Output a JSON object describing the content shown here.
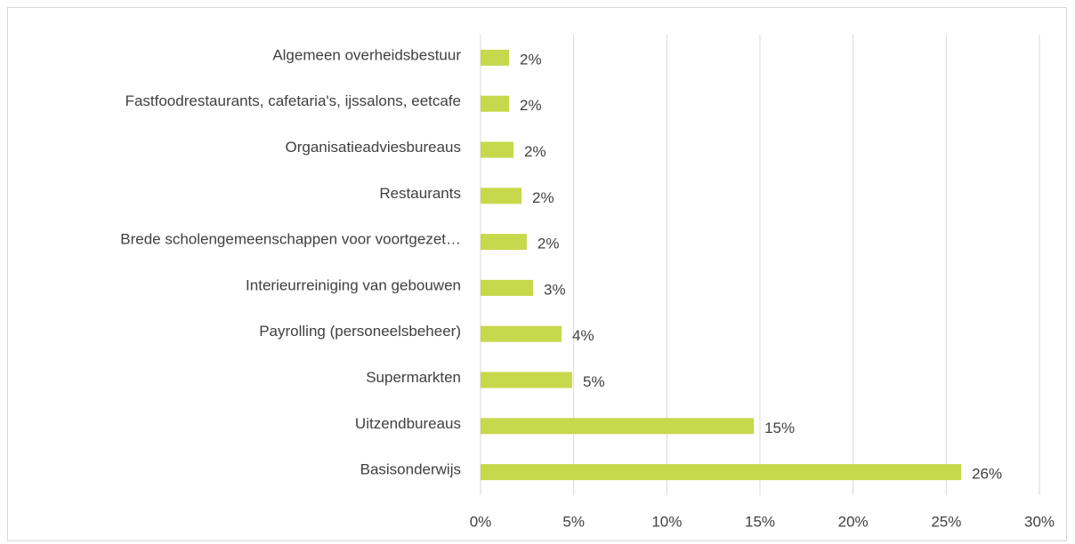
{
  "chart_data": {
    "type": "bar",
    "orientation": "horizontal",
    "categories": [
      "Algemeen overheidsbestuur",
      "Fastfoodrestaurants, cafetaria's,  ijssalons, eetcafe",
      "Organisatieadviesbureaus",
      "Restaurants",
      "Brede scholengemeenschappen voor voortgezet…",
      "Interieurreiniging van gebouwen",
      "Payrolling (personeelsbeheer)",
      "Supermarkten",
      "Uitzendbureaus",
      "Basisonderwijs"
    ],
    "values": [
      1.53,
      1.53,
      1.77,
      2.2,
      2.48,
      2.82,
      4.35,
      4.92,
      14.67,
      25.8
    ],
    "value_labels": [
      "2%",
      "2%",
      "2%",
      "2%",
      "2%",
      "3%",
      "4%",
      "5%",
      "15%",
      "26%"
    ],
    "color": "#c6d84b",
    "xlim": [
      0,
      30
    ],
    "xticks": [
      {
        "value": 0,
        "label": "0%"
      },
      {
        "value": 5,
        "label": "5%"
      },
      {
        "value": 10,
        "label": "10%"
      },
      {
        "value": 15,
        "label": "15%"
      },
      {
        "value": 20,
        "label": "20%"
      },
      {
        "value": 25,
        "label": "25%"
      },
      {
        "value": 30,
        "label": "30%"
      }
    ],
    "grid": true
  }
}
